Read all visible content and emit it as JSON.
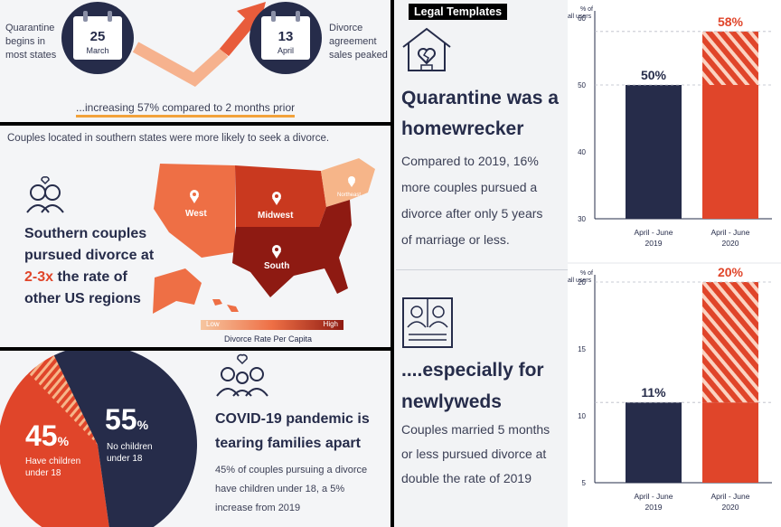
{
  "colors": {
    "navy": "#262c4a",
    "red": "#e0452a",
    "orange": "#f28b59",
    "light_orange": "#f6b589",
    "dark_red": "#8e1a12",
    "bg": "#f4f5f7"
  },
  "timeline": {
    "left_text": [
      "Quarantine",
      "begins in",
      "most states"
    ],
    "date1": {
      "day": "25",
      "month": "March"
    },
    "date2": {
      "day": "13",
      "month": "April"
    },
    "right_text": [
      "Divorce",
      "agreement",
      "sales peaked"
    ],
    "caption": "...increasing 57% compared to 2 months prior"
  },
  "map_panel": {
    "intro": "Couples located in southern states were more likely to seek a divorce.",
    "headline_1": "Southern couples",
    "headline_2": "pursued divorce at",
    "highlight": "2-3x",
    "headline_3": " the rate of",
    "headline_4": "other US regions",
    "regions": {
      "west": "West",
      "midwest": "Midwest",
      "south": "South",
      "northeast": "Northeast"
    },
    "legend_low": "Low",
    "legend_high": "High",
    "legend_title": "Divorce Rate Per Capita"
  },
  "pie_panel": {
    "pct_children": "45",
    "pct_symbol": "%",
    "label_children": [
      "Have children",
      "under 18"
    ],
    "pct_no_children": "55",
    "label_no_children": [
      "No children",
      "under 18"
    ],
    "headline": [
      "COVID-19 pandemic is",
      "tearing families apart"
    ],
    "body": [
      "45% of couples pursuing a divorce",
      "have children under 18, a 5%",
      "increase from 2019"
    ],
    "chart_data": {
      "type": "pie",
      "categories": [
        "Have children under 18",
        "No children under 18"
      ],
      "values": [
        45,
        55
      ]
    }
  },
  "header_badge": "Legal Templates",
  "section1": {
    "headline": [
      "Quarantine was a",
      "homewrecker"
    ],
    "body": [
      "Compared to 2019, 16%",
      "more couples pursued a",
      "divorce after only 5 years",
      "of marriage or less."
    ]
  },
  "section2": {
    "headline": [
      "....especially for",
      "newlyweds"
    ],
    "body": [
      "Couples married 5 months",
      "or less pursued divorce at",
      "double the rate of 2019"
    ]
  },
  "chart1": {
    "ylabel": [
      "% of",
      "all users"
    ],
    "chart_data": {
      "type": "bar",
      "categories": [
        [
          "April - June",
          "2019"
        ],
        [
          "April - June",
          "2020"
        ]
      ],
      "values": [
        50,
        58
      ],
      "value_labels": [
        "50%",
        "58%"
      ],
      "ylim": [
        30,
        60
      ],
      "yticks": [
        30,
        40,
        50,
        60
      ],
      "hatched_above": 50
    }
  },
  "chart2": {
    "ylabel": [
      "% of",
      "all users"
    ],
    "chart_data": {
      "type": "bar",
      "categories": [
        [
          "April - June",
          "2019"
        ],
        [
          "April - June",
          "2020"
        ]
      ],
      "values": [
        11,
        20
      ],
      "value_labels": [
        "11%",
        "20%"
      ],
      "ylim": [
        5,
        20
      ],
      "yticks": [
        5,
        10,
        15,
        20
      ],
      "hatched_above": 11
    }
  }
}
